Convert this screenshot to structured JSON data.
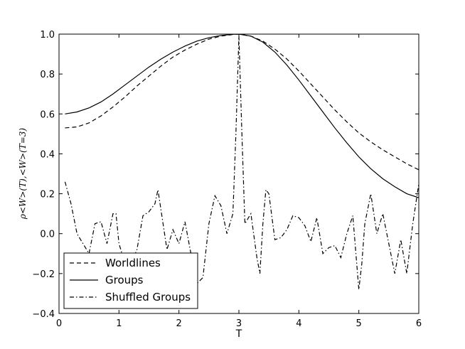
{
  "chart_data": {
    "type": "line",
    "title": "",
    "xlabel": "T",
    "ylabel": "ρ<W>(T),<W>(T=3)",
    "xlim": [
      0,
      6
    ],
    "ylim": [
      -0.4,
      1.0
    ],
    "x_ticks": [
      0,
      1,
      2,
      3,
      4,
      5,
      6
    ],
    "y_ticks": [
      -0.4,
      -0.2,
      0.0,
      0.2,
      0.4,
      0.6,
      0.8,
      1.0
    ],
    "x_tick_labels": [
      "0",
      "1",
      "2",
      "3",
      "4",
      "5",
      "6"
    ],
    "y_tick_labels": [
      "−0.4",
      "−0.2",
      "0.0",
      "0.2",
      "0.4",
      "0.6",
      "0.8",
      "1.0"
    ],
    "grid": false,
    "legend_position": "lower-left",
    "series": [
      {
        "name": "Worldlines",
        "style": "dashed",
        "x": [
          0.1,
          0.3,
          0.5,
          0.7,
          0.9,
          1.1,
          1.3,
          1.5,
          1.7,
          1.9,
          2.1,
          2.3,
          2.5,
          2.7,
          2.9,
          3.0,
          3.2,
          3.4,
          3.6,
          3.8,
          4.0,
          4.2,
          4.4,
          4.6,
          4.8,
          5.0,
          5.2,
          5.4,
          5.6,
          5.8,
          6.0
        ],
        "y": [
          0.53,
          0.535,
          0.555,
          0.59,
          0.635,
          0.685,
          0.74,
          0.79,
          0.84,
          0.885,
          0.92,
          0.95,
          0.975,
          0.99,
          0.998,
          1.0,
          0.99,
          0.965,
          0.925,
          0.875,
          0.815,
          0.75,
          0.685,
          0.62,
          0.56,
          0.505,
          0.46,
          0.42,
          0.385,
          0.35,
          0.32
        ]
      },
      {
        "name": "Groups",
        "style": "solid",
        "x": [
          0.1,
          0.3,
          0.5,
          0.7,
          0.9,
          1.1,
          1.3,
          1.5,
          1.7,
          1.9,
          2.1,
          2.3,
          2.5,
          2.7,
          2.9,
          3.0,
          3.2,
          3.4,
          3.6,
          3.8,
          4.0,
          4.2,
          4.4,
          4.6,
          4.8,
          5.0,
          5.2,
          5.4,
          5.6,
          5.8,
          6.0
        ],
        "y": [
          0.6,
          0.61,
          0.63,
          0.66,
          0.7,
          0.745,
          0.79,
          0.835,
          0.875,
          0.91,
          0.94,
          0.965,
          0.982,
          0.993,
          0.999,
          1.0,
          0.99,
          0.96,
          0.91,
          0.845,
          0.77,
          0.69,
          0.61,
          0.53,
          0.455,
          0.385,
          0.325,
          0.275,
          0.235,
          0.2,
          0.18
        ]
      },
      {
        "name": "Shuffled Groups",
        "style": "dashdot",
        "x": [
          0.1,
          0.2,
          0.3,
          0.4,
          0.5,
          0.6,
          0.7,
          0.8,
          0.9,
          0.95,
          1.0,
          1.05,
          1.1,
          1.2,
          1.3,
          1.4,
          1.5,
          1.6,
          1.65,
          1.7,
          1.8,
          1.9,
          2.0,
          2.1,
          2.2,
          2.3,
          2.4,
          2.5,
          2.6,
          2.7,
          2.8,
          2.9,
          2.95,
          3.0,
          3.05,
          3.1,
          3.2,
          3.3,
          3.35,
          3.4,
          3.45,
          3.5,
          3.6,
          3.7,
          3.8,
          3.9,
          4.0,
          4.1,
          4.2,
          4.3,
          4.4,
          4.5,
          4.6,
          4.7,
          4.8,
          4.9,
          5.0,
          5.05,
          5.1,
          5.2,
          5.3,
          5.4,
          5.5,
          5.6,
          5.7,
          5.8,
          5.9,
          6.0
        ],
        "y": [
          0.26,
          0.15,
          0.0,
          -0.05,
          -0.1,
          0.05,
          0.06,
          -0.05,
          0.1,
          0.1,
          -0.05,
          -0.1,
          -0.17,
          -0.15,
          -0.08,
          0.09,
          0.11,
          0.15,
          0.22,
          0.12,
          -0.08,
          0.02,
          -0.05,
          0.06,
          -0.1,
          -0.25,
          -0.22,
          0.05,
          0.19,
          0.14,
          0.0,
          0.1,
          0.5,
          0.99,
          0.5,
          0.05,
          0.1,
          -0.12,
          -0.2,
          0.05,
          0.22,
          0.2,
          -0.03,
          -0.02,
          0.02,
          0.09,
          0.08,
          0.04,
          -0.04,
          0.08,
          -0.1,
          -0.07,
          -0.06,
          -0.12,
          0.0,
          0.09,
          -0.28,
          -0.15,
          0.05,
          0.2,
          0.0,
          0.1,
          -0.05,
          -0.2,
          -0.03,
          -0.2,
          0.05,
          0.25
        ]
      }
    ]
  }
}
